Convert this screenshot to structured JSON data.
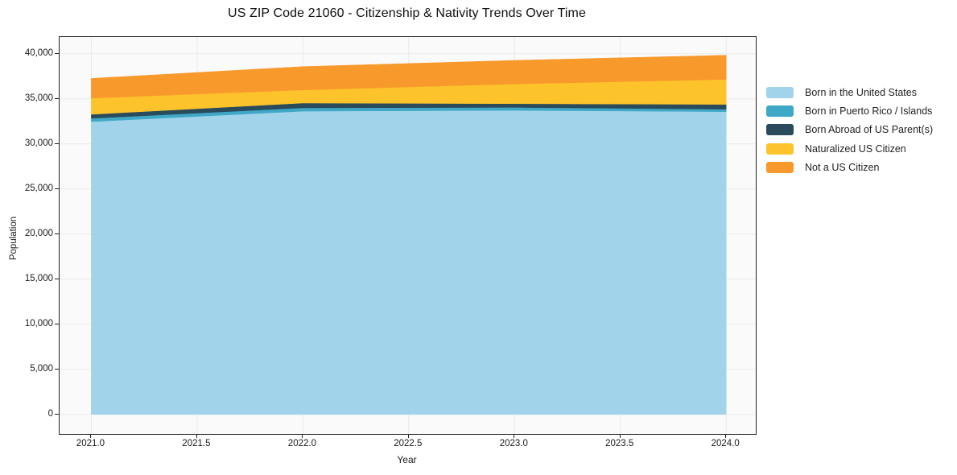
{
  "page": {
    "title": "US ZIP Code 21060 - Citizenship & Nativity Trends Over Time"
  },
  "colors": {
    "plot_background": "#fafafa",
    "gridline": "#e9e9e9",
    "spine": "#222222",
    "series_blue": "#a1d3ea",
    "series_teal": "#3fa8c6",
    "series_navy": "#294b5c",
    "series_yellow": "#fdc32b",
    "series_orange": "#f8992b"
  },
  "chart_data": {
    "type": "area",
    "stacked": true,
    "title": "US ZIP Code 21060 - Citizenship & Nativity Trends Over Time",
    "xlabel": "Year",
    "ylabel": "Population",
    "x": [
      2021,
      2022,
      2023,
      2024
    ],
    "series": [
      {
        "name": "Born in the United States",
        "color": "#a1d3ea",
        "values": [
          32470,
          33630,
          33720,
          33570
        ]
      },
      {
        "name": "Born in Puerto Rico / Islands",
        "color": "#3fa8c6",
        "values": [
          360,
          360,
          330,
          270
        ]
      },
      {
        "name": "Born Abroad of US Parent(s)",
        "color": "#294b5c",
        "values": [
          450,
          540,
          410,
          540
        ]
      },
      {
        "name": "Naturalized US Citizen",
        "color": "#fdc32b",
        "values": [
          1790,
          1450,
          2180,
          2770
        ]
      },
      {
        "name": "Not a US Citizen",
        "color": "#f8992b",
        "values": [
          2190,
          2590,
          2620,
          2680
        ]
      }
    ],
    "totals_by_year": [
      37260,
      38570,
      39260,
      39830
    ],
    "xlim": [
      2020.85,
      2024.14
    ],
    "ylim": [
      -2170,
      41850
    ],
    "x_ticks": {
      "values": [
        2021.0,
        2021.5,
        2022.0,
        2022.5,
        2023.0,
        2023.5,
        2024.0
      ],
      "labels": [
        "2021.0",
        "2021.5",
        "2022.0",
        "2022.5",
        "2023.0",
        "2023.5",
        "2024.0"
      ]
    },
    "y_ticks": {
      "values": [
        0,
        5000,
        10000,
        15000,
        20000,
        25000,
        30000,
        35000,
        40000
      ],
      "labels": [
        "0",
        "5,000",
        "10,000",
        "15,000",
        "20,000",
        "25,000",
        "30,000",
        "35,000",
        "40,000"
      ]
    },
    "grid": true,
    "legend_position": "right-outside"
  }
}
